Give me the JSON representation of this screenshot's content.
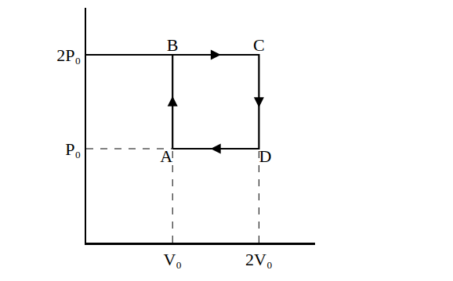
{
  "chart_data": {
    "type": "line",
    "series": [
      {
        "x": [
          1,
          1,
          2,
          2,
          1
        ],
        "values": [
          1,
          2,
          2,
          1,
          1
        ],
        "point_labels": [
          "A",
          "B",
          "C",
          "D",
          null
        ],
        "color": "#000000",
        "line_style": "solid",
        "marker": "arrow"
      },
      {
        "x": [
          0,
          1
        ],
        "values": [
          2,
          2
        ],
        "color": "#000000",
        "line_style": "solid",
        "marker": "none"
      },
      {
        "x": [
          0,
          1
        ],
        "values": [
          1,
          1
        ],
        "color": "#000000",
        "line_style": "dashed",
        "marker": "none"
      },
      {
        "x": [
          1,
          1
        ],
        "values": [
          0,
          1
        ],
        "color": "#000000",
        "line_style": "dashed",
        "marker": "none"
      },
      {
        "x": [
          2,
          2
        ],
        "values": [
          0,
          1
        ],
        "color": "#000000",
        "line_style": "dashed",
        "marker": "none"
      }
    ],
    "xlim": [
      0,
      2.65
    ],
    "ylim": [
      0,
      2.5
    ],
    "xticks": [
      {
        "value": 1,
        "label": "V₀"
      },
      {
        "value": 2,
        "label": "2V₀"
      }
    ],
    "yticks": [
      {
        "value": 1,
        "label": "P₀"
      },
      {
        "value": 2,
        "label": "2P₀"
      }
    ],
    "grid": false
  }
}
